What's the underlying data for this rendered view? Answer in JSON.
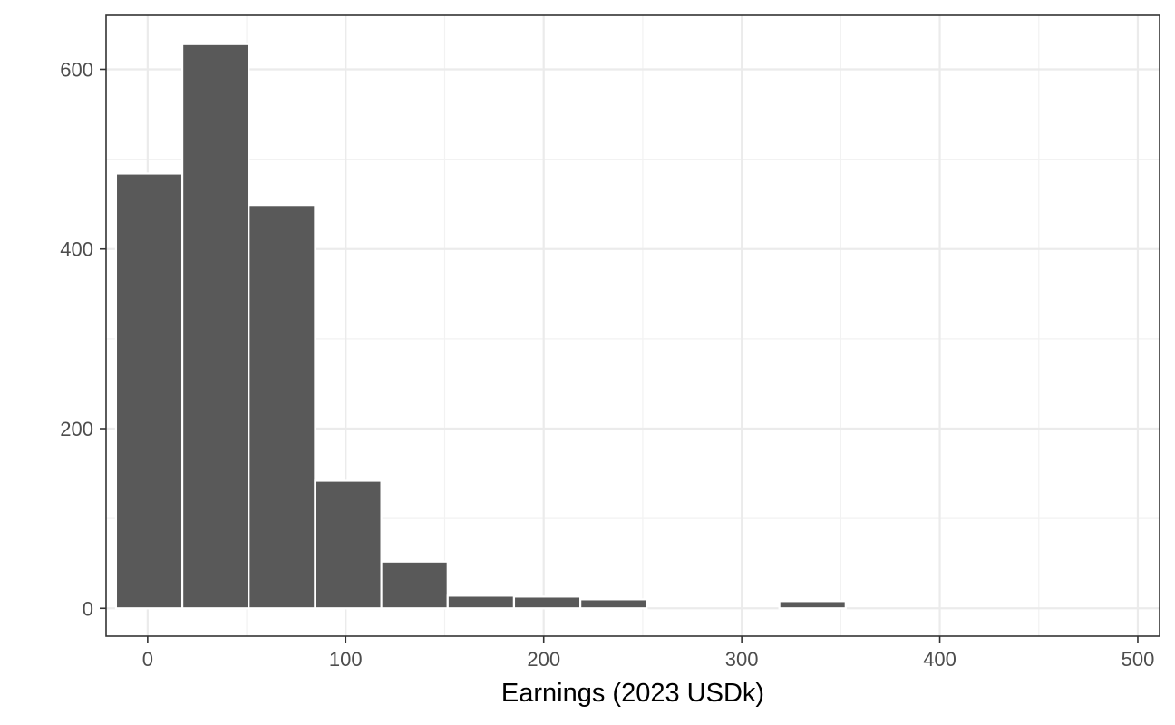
{
  "chart_data": {
    "type": "bar",
    "subtype": "histogram",
    "title": "",
    "xlabel": "Earnings (2023 USDk)",
    "ylabel": "",
    "xlim": [
      -21,
      511
    ],
    "ylim": [
      -31,
      660
    ],
    "x_ticks": [
      0,
      100,
      200,
      300,
      400,
      500
    ],
    "x_tick_labels": [
      "0",
      "100",
      "200",
      "300",
      "400",
      "500"
    ],
    "y_ticks": [
      0,
      200,
      400,
      600
    ],
    "y_tick_labels": [
      "0",
      "200",
      "400",
      "600"
    ],
    "bin_width": 33.5,
    "bins": [
      {
        "x0": -16,
        "x1": 17.5,
        "count": 484
      },
      {
        "x0": 17.5,
        "x1": 51,
        "count": 628
      },
      {
        "x0": 51,
        "x1": 84.5,
        "count": 449
      },
      {
        "x0": 84.5,
        "x1": 118,
        "count": 142
      },
      {
        "x0": 118,
        "x1": 151.5,
        "count": 52
      },
      {
        "x0": 151.5,
        "x1": 185,
        "count": 14
      },
      {
        "x0": 185,
        "x1": 218.5,
        "count": 13
      },
      {
        "x0": 218.5,
        "x1": 252,
        "count": 10
      },
      {
        "x0": 252,
        "x1": 285.5,
        "count": 0
      },
      {
        "x0": 285.5,
        "x1": 319,
        "count": 0
      },
      {
        "x0": 319,
        "x1": 352.5,
        "count": 8
      },
      {
        "x0": 352.5,
        "x1": 386,
        "count": 0
      },
      {
        "x0": 386,
        "x1": 419.5,
        "count": 0
      },
      {
        "x0": 419.5,
        "x1": 453,
        "count": 0
      },
      {
        "x0": 453,
        "x1": 486.5,
        "count": 0
      }
    ],
    "grid": true,
    "legend": "none",
    "colors": {
      "bar_fill": "#595959",
      "bar_outline": "#ffffff",
      "grid_major": "#ebebeb",
      "grid_minor": "#f2f2f2",
      "panel_border": "#333333",
      "tick_text": "#4d4d4d",
      "axis_title_text": "#000000"
    }
  }
}
